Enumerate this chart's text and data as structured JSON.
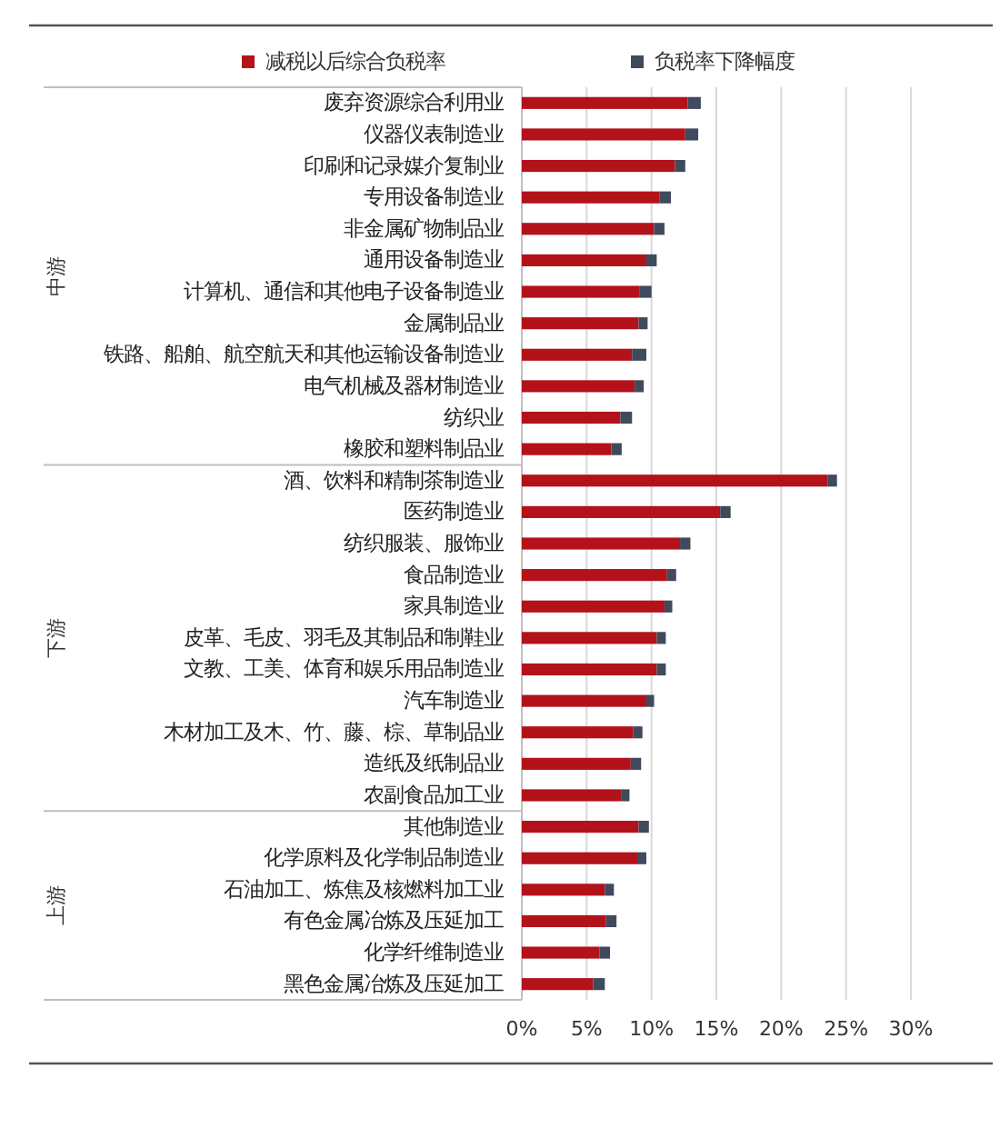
{
  "chart_data": {
    "type": "bar",
    "orientation": "horizontal",
    "stacked": true,
    "categories": [
      "废弃资源综合利用业",
      "仪器仪表制造业",
      "印刷和记录媒介复制业",
      "专用设备制造业",
      "非金属矿物制品业",
      "通用设备制造业",
      "计算机、通信和其他电子设备制造业",
      "金属制品业",
      "铁路、船舶、航空航天和其他运输设备制造业",
      "电气机械及器材制造业",
      "纺织业",
      "橡胶和塑料制品业",
      "酒、饮料和精制茶制造业",
      "医药制造业",
      "纺织服装、服饰业",
      "食品制造业",
      "家具制造业",
      "皮革、毛皮、羽毛及其制品和制鞋业",
      "文教、工美、体育和娱乐用品制造业",
      "汽车制造业",
      "木材加工及木、竹、藤、棕、草制品业",
      "造纸及纸制品业",
      "农副食品加工业",
      "其他制造业",
      "化学原料及化学制品制造业",
      "石油加工、炼焦及核燃料加工业",
      "有色金属冶炼及压延加工",
      "化学纤维制造业",
      "黑色金属冶炼及压延加工"
    ],
    "series": [
      {
        "name": "减税以后综合负税率",
        "color": "#b3121b",
        "values": [
          12.8,
          12.6,
          11.8,
          10.6,
          10.2,
          9.6,
          9.1,
          9.0,
          8.5,
          8.7,
          7.6,
          6.9,
          23.6,
          15.3,
          12.2,
          11.2,
          11.0,
          10.4,
          10.4,
          9.6,
          8.6,
          8.4,
          7.7,
          9.0,
          8.9,
          6.4,
          6.5,
          6.0,
          5.5
        ]
      },
      {
        "name": "负税率下降幅度",
        "color": "#3f4a5c",
        "values": [
          1.0,
          1.0,
          0.8,
          0.9,
          0.8,
          0.8,
          0.9,
          0.7,
          1.1,
          0.7,
          0.9,
          0.8,
          0.7,
          0.8,
          0.8,
          0.7,
          0.6,
          0.7,
          0.7,
          0.6,
          0.7,
          0.8,
          0.6,
          0.8,
          0.7,
          0.7,
          0.8,
          0.8,
          0.9
        ]
      }
    ],
    "xlim": [
      0,
      30
    ],
    "xticks": [
      {
        "value": 0,
        "label": "0%"
      },
      {
        "value": 5,
        "label": "5%"
      },
      {
        "value": 10,
        "label": "10%"
      },
      {
        "value": 15,
        "label": "15%"
      },
      {
        "value": 20,
        "label": "20%"
      },
      {
        "value": 25,
        "label": "25%"
      },
      {
        "value": 30,
        "label": "30%"
      }
    ],
    "grid": "x",
    "legend": "top",
    "annotations": [
      "中游",
      "下游",
      "上游"
    ]
  }
}
